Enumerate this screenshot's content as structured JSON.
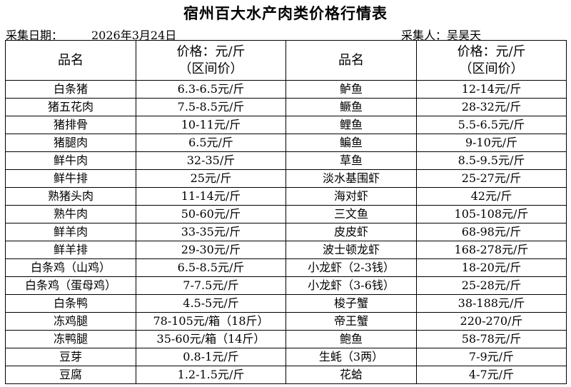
{
  "title": "宿州百大水产肉类价格行情表",
  "date_label": "采集日期：",
  "date_value": "2026年3月24日",
  "collector": "采集人：吴昊天",
  "headers": {
    "name": "品名",
    "price_line1": "价格：元/斤",
    "price_line2": "（区间价）"
  },
  "rows": [
    {
      "n1": "白条猪",
      "p1": "6.3-6.5元/斤",
      "n2": "鲈鱼",
      "p2": "12-14元/斤"
    },
    {
      "n1": "猪五花肉",
      "p1": "7.5-8.5元/斤",
      "n2": "鳜鱼",
      "p2": "28-32元/斤"
    },
    {
      "n1": "猪排骨",
      "p1": "10-11元/斤",
      "n2": "鲤鱼",
      "p2": "5.5-6.5元/斤"
    },
    {
      "n1": "猪腿肉",
      "p1": "6.5元/斤",
      "n2": "鳊鱼",
      "p2": "9-10元/斤"
    },
    {
      "n1": "鲜牛肉",
      "p1": "32-35/斤",
      "n2": "草鱼",
      "p2": "8.5-9.5元/斤"
    },
    {
      "n1": "鲜牛排",
      "p1": "25元/斤",
      "n2": "淡水基围虾",
      "p2": "25-27元/斤"
    },
    {
      "n1": "熟猪头肉",
      "p1": "11-14元/斤",
      "n2": "海对虾",
      "p2": "42元/斤"
    },
    {
      "n1": "熟牛肉",
      "p1": "50-60元/斤",
      "n2": "三文鱼",
      "p2": "105-108元/斤"
    },
    {
      "n1": "鲜羊肉",
      "p1": "33-35元/斤",
      "n2": "皮皮虾",
      "p2": "68-98元/斤"
    },
    {
      "n1": "鲜羊排",
      "p1": "29-30元/斤",
      "n2": "波士顿龙虾",
      "p2": "168-278元/斤"
    },
    {
      "n1": "白条鸡（山鸡）",
      "p1": "6.5-8.5元/斤",
      "n2": "小龙虾（2-3钱）",
      "p2": "18-20元/斤"
    },
    {
      "n1": "白条鸡（蛋母鸡）",
      "p1": "7-7.5元/斤",
      "n2": "小龙虾（3-6钱）",
      "p2": "25-28元/斤"
    },
    {
      "n1": "白条鸭",
      "p1": "4.5-5元/斤",
      "n2": "梭子蟹",
      "p2": "38-188元/斤"
    },
    {
      "n1": "冻鸡腿",
      "p1": "78-105元/箱（18斤）",
      "n2": "帝王蟹",
      "p2": "220-270/斤"
    },
    {
      "n1": "冻鸭腿",
      "p1": "35-60元/箱（14斤）",
      "n2": "鲍鱼",
      "p2": "58-78元/斤"
    },
    {
      "n1": "豆芽",
      "p1": "0.8-1元/斤",
      "n2": "生蚝（3两）",
      "p2": "7-9元/斤"
    },
    {
      "n1": "豆腐",
      "p1": "1.2-1.5元/斤",
      "n2": "花蛤",
      "p2": "4-7元/斤"
    }
  ]
}
